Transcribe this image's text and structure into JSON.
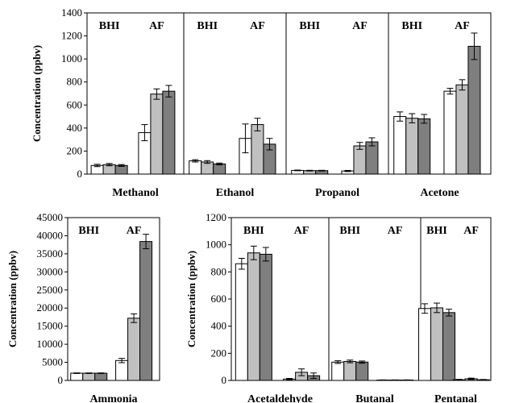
{
  "chart_data": [
    {
      "type": "bar",
      "ylabel": "Concentration (ppbv)",
      "ylim": [
        0,
        1400
      ],
      "yticks": [
        "0",
        "200",
        "400",
        "600",
        "800",
        "1000",
        "1200",
        "1400"
      ],
      "group_labels": [
        "BHI",
        "AF"
      ],
      "series_colors": [
        "#ffffff",
        "#c0c0c0",
        "#7f7f7f"
      ],
      "panels": [
        {
          "title": "Methanol",
          "BHI": {
            "values": [
              75,
              82,
              75
            ],
            "errors": [
              10,
              10,
              8
            ]
          },
          "AF": {
            "values": [
              360,
              695,
              720
            ],
            "errors": [
              70,
              45,
              50
            ]
          }
        },
        {
          "title": "Ethanol",
          "BHI": {
            "values": [
              115,
              105,
              88
            ],
            "errors": [
              10,
              12,
              8
            ]
          },
          "AF": {
            "values": [
              310,
              430,
              260
            ],
            "errors": [
              125,
              55,
              50
            ]
          }
        },
        {
          "title": "Propanol",
          "BHI": {
            "values": [
              32,
              30,
              30
            ],
            "errors": [
              3,
              3,
              3
            ]
          },
          "AF": {
            "values": [
              27,
              245,
              280
            ],
            "errors": [
              5,
              30,
              35
            ]
          }
        },
        {
          "title": "Acetone",
          "BHI": {
            "values": [
              500,
              485,
              480
            ],
            "errors": [
              40,
              40,
              38
            ]
          },
          "AF": {
            "values": [
              720,
              775,
              1110
            ],
            "errors": [
              25,
              45,
              115
            ]
          }
        }
      ]
    },
    {
      "type": "bar",
      "ylabel": "Concentration (ppbv)",
      "ylim": [
        0,
        45000
      ],
      "yticks": [
        "0",
        "5000",
        "10000",
        "15000",
        "20000",
        "25000",
        "30000",
        "35000",
        "40000",
        "45000"
      ],
      "group_labels": [
        "BHI",
        "AF"
      ],
      "series_colors": [
        "#ffffff",
        "#c0c0c0",
        "#7f7f7f"
      ],
      "panels": [
        {
          "title": "Ammonia",
          "BHI": {
            "values": [
              2000,
              2000,
              2000
            ],
            "errors": [
              80,
              80,
              80
            ]
          },
          "AF": {
            "values": [
              5500,
              17200,
              38400
            ],
            "errors": [
              600,
              1200,
              2000
            ]
          }
        }
      ]
    },
    {
      "type": "bar",
      "ylabel": "Concentration (ppbv)",
      "ylim": [
        0,
        1200
      ],
      "yticks": [
        "0",
        "200",
        "400",
        "600",
        "800",
        "1000",
        "1200"
      ],
      "group_labels": [
        "BHI",
        "AF"
      ],
      "series_colors": [
        "#ffffff",
        "#c0c0c0",
        "#7f7f7f"
      ],
      "panels": [
        {
          "title": "Acetaldehyde",
          "BHI": {
            "values": [
              860,
              940,
              930
            ],
            "errors": [
              40,
              50,
              50
            ]
          },
          "AF": {
            "values": [
              10,
              60,
              35
            ],
            "errors": [
              5,
              25,
              20
            ]
          }
        },
        {
          "title": "Butanal",
          "BHI": {
            "values": [
              135,
              140,
              135
            ],
            "errors": [
              10,
              10,
              8
            ]
          },
          "AF": {
            "values": [
              3,
              3,
              3
            ],
            "errors": [
              1,
              1,
              1
            ]
          }
        },
        {
          "title": "Pentanal",
          "BHI": {
            "values": [
              530,
              535,
              500
            ],
            "errors": [
              35,
              35,
              25
            ]
          },
          "AF": {
            "values": [
              5,
              12,
              5
            ],
            "errors": [
              3,
              5,
              2
            ]
          }
        }
      ]
    }
  ]
}
